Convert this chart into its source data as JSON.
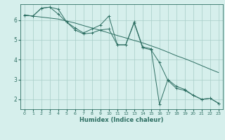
{
  "title": "",
  "xlabel": "Humidex (Indice chaleur)",
  "bg_color": "#d6efec",
  "line_color": "#2d6e62",
  "grid_color": "#a8cdc8",
  "xlim": [
    -0.5,
    23.5
  ],
  "ylim": [
    1.5,
    6.8
  ],
  "xticks": [
    0,
    1,
    2,
    3,
    4,
    5,
    6,
    7,
    8,
    9,
    10,
    11,
    12,
    13,
    14,
    15,
    16,
    17,
    18,
    19,
    20,
    21,
    22,
    23
  ],
  "yticks": [
    2,
    3,
    4,
    5,
    6
  ],
  "line1_x": [
    0,
    1,
    2,
    3,
    4,
    5,
    6,
    7,
    8,
    9,
    10,
    11,
    12,
    13,
    14,
    15,
    16,
    17,
    18,
    19,
    20,
    21,
    22,
    23
  ],
  "line1_y": [
    6.25,
    6.2,
    6.15,
    6.1,
    6.05,
    5.95,
    5.85,
    5.72,
    5.6,
    5.48,
    5.35,
    5.22,
    5.1,
    4.97,
    4.85,
    4.7,
    4.55,
    4.38,
    4.2,
    4.05,
    3.88,
    3.7,
    3.52,
    3.35
  ],
  "line2_x": [
    0,
    1,
    2,
    3,
    4,
    5,
    6,
    7,
    8,
    9,
    10,
    11,
    12,
    13,
    14,
    15,
    16,
    17,
    18,
    19,
    20,
    21,
    22,
    23
  ],
  "line2_y": [
    6.25,
    6.2,
    6.6,
    6.65,
    6.55,
    5.9,
    5.6,
    5.35,
    5.55,
    5.75,
    6.2,
    4.75,
    4.75,
    5.9,
    4.65,
    4.55,
    1.75,
    3.0,
    2.65,
    2.5,
    2.2,
    2.0,
    2.05,
    1.8
  ],
  "line3_x": [
    0,
    1,
    2,
    3,
    4,
    5,
    6,
    7,
    8,
    9,
    10,
    11,
    12,
    13,
    14,
    15,
    16,
    17,
    18,
    19,
    20,
    21,
    22,
    23
  ],
  "line3_y": [
    6.25,
    6.2,
    6.6,
    6.65,
    6.3,
    5.9,
    5.5,
    5.3,
    5.35,
    5.5,
    5.55,
    4.75,
    4.75,
    5.85,
    4.6,
    4.5,
    3.85,
    2.95,
    2.55,
    2.45,
    2.2,
    2.0,
    2.05,
    1.8
  ],
  "marker": "+"
}
